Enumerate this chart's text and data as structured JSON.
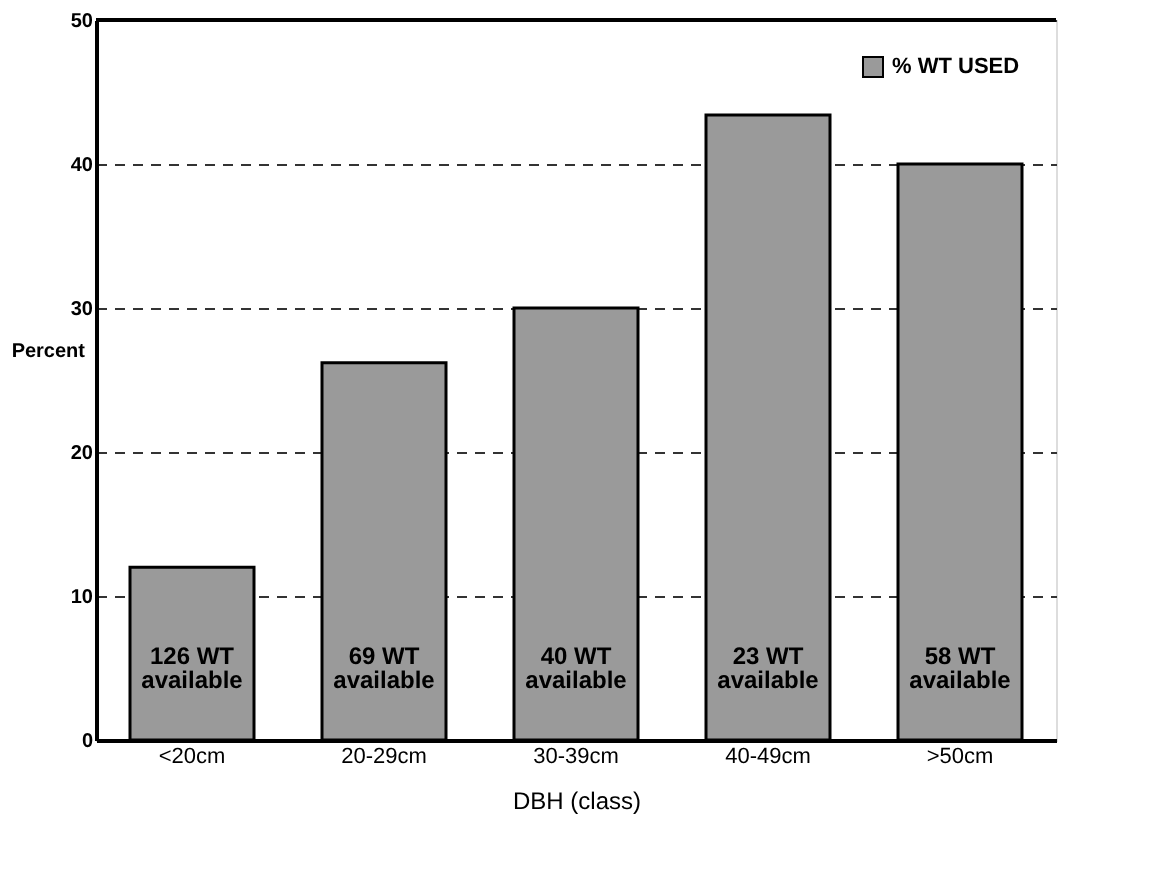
{
  "chart_data": {
    "type": "bar",
    "xlabel": "DBH (class)",
    "ylabel": "Percent",
    "categories": [
      "<20cm",
      "20-29cm",
      "30-39cm",
      "40-49cm",
      ">50cm"
    ],
    "series": [
      {
        "name": "% WT USED",
        "color": "#9a9a9a",
        "values": [
          12,
          26.2,
          30,
          43.4,
          40
        ]
      }
    ],
    "ylim": [
      0,
      50
    ],
    "yticks": [
      0,
      10,
      20,
      30,
      40,
      50
    ],
    "grid": "y",
    "legend": "top right",
    "annotations": [
      "126 WT\navailable",
      "69 WT\navailable",
      "40 WT\navailable",
      "23 WT\navailable",
      "58 WT\navailable"
    ]
  }
}
